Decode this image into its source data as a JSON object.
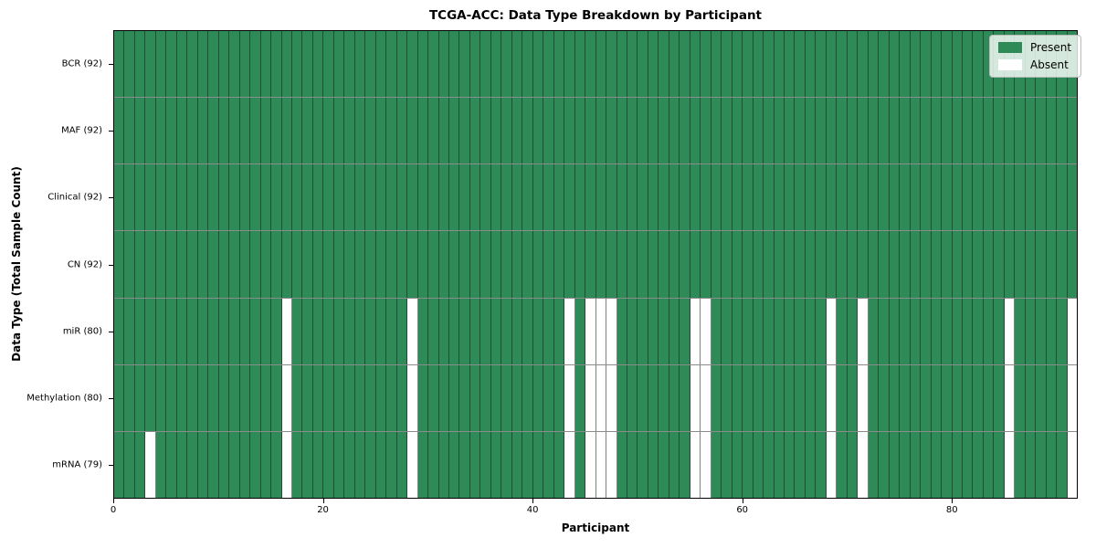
{
  "chart_data": {
    "type": "heatmap",
    "title": "TCGA-ACC: Data Type Breakdown by Participant",
    "xlabel": "Participant",
    "ylabel": "Data Type (Total Sample Count)",
    "n_participants": 92,
    "x_range": [
      0,
      92
    ],
    "x_ticks": [
      "0",
      "20",
      "40",
      "60",
      "80"
    ],
    "x_tick_values": [
      0,
      20,
      40,
      60,
      80
    ],
    "value_encoding": {
      "present": 1,
      "absent": 0
    },
    "colors": {
      "present": "#2e8b57",
      "absent": "#ffffff",
      "cell_border": "rgba(20,30,24,0.55)",
      "frame": "#000000"
    },
    "rows": [
      {
        "label": "BCR (92)",
        "data_type": "BCR",
        "present_count": 92,
        "absent_participants": []
      },
      {
        "label": "MAF (92)",
        "data_type": "MAF",
        "present_count": 92,
        "absent_participants": []
      },
      {
        "label": "Clinical (92)",
        "data_type": "Clinical",
        "present_count": 92,
        "absent_participants": []
      },
      {
        "label": "CN (92)",
        "data_type": "CN",
        "present_count": 92,
        "absent_participants": []
      },
      {
        "label": "miR (80)",
        "data_type": "miR",
        "present_count": 80,
        "absent_participants": [
          16,
          28,
          43,
          45,
          46,
          47,
          55,
          56,
          68,
          71,
          85,
          91
        ]
      },
      {
        "label": "Methylation (80)",
        "data_type": "Methylation",
        "present_count": 80,
        "absent_participants": [
          16,
          28,
          43,
          45,
          46,
          47,
          55,
          56,
          68,
          71,
          85,
          91
        ]
      },
      {
        "label": "mRNA (79)",
        "data_type": "mRNA",
        "present_count": 79,
        "absent_participants": [
          3,
          16,
          28,
          43,
          45,
          46,
          47,
          55,
          56,
          68,
          71,
          85,
          91
        ]
      }
    ],
    "legend": {
      "location": "upper right",
      "items": [
        {
          "label": "Present",
          "color": "#2e8b57"
        },
        {
          "label": "Absent",
          "color": "#ffffff"
        }
      ]
    }
  }
}
